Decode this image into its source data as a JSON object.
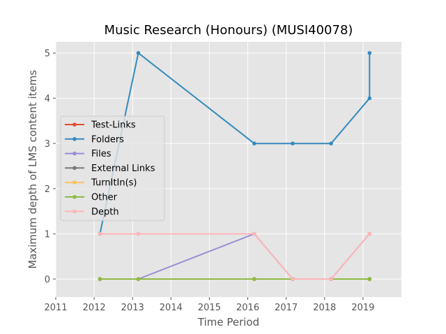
{
  "chart_data": {
    "type": "line",
    "title": "Music Research (Honours) (MUSI40078)",
    "xlabel": "Time Period",
    "ylabel": "Maximum depth of LMS content items",
    "xlim": [
      2011,
      2020
    ],
    "ylim": [
      -0.4,
      5.25
    ],
    "xticks": [
      "2011",
      "2012",
      "2013",
      "2014",
      "2015",
      "2016",
      "2017",
      "2018",
      "2019"
    ],
    "yticks": [
      "0",
      "1",
      "2",
      "3",
      "4",
      "5"
    ],
    "grid": true,
    "legend_position": "center-left",
    "series": [
      {
        "name": "Test-Links",
        "color": "#E24A33",
        "points": [
          [
            2012.15,
            0
          ],
          [
            2013.15,
            0
          ],
          [
            2016.17,
            0
          ],
          [
            2017.17,
            0
          ],
          [
            2018.17,
            0
          ],
          [
            2019.17,
            0
          ],
          [
            2019.17,
            0
          ]
        ]
      },
      {
        "name": "Folders",
        "color": "#348ABD",
        "points": [
          [
            2012.15,
            1
          ],
          [
            2013.15,
            5
          ],
          [
            2016.17,
            3
          ],
          [
            2017.17,
            3
          ],
          [
            2018.17,
            3
          ],
          [
            2019.17,
            4
          ],
          [
            2019.17,
            5
          ]
        ]
      },
      {
        "name": "Files",
        "color": "#988ED5",
        "points": [
          [
            2012.15,
            0
          ],
          [
            2013.15,
            0
          ],
          [
            2016.17,
            1
          ],
          [
            2017.17,
            0
          ],
          [
            2018.17,
            0
          ],
          [
            2019.17,
            1
          ],
          [
            2019.17,
            1
          ]
        ]
      },
      {
        "name": "External Links",
        "color": "#777777",
        "points": [
          [
            2012.15,
            0
          ],
          [
            2013.15,
            0
          ],
          [
            2016.17,
            0
          ],
          [
            2017.17,
            0
          ],
          [
            2018.17,
            0
          ],
          [
            2019.17,
            0
          ],
          [
            2019.17,
            0
          ]
        ]
      },
      {
        "name": "TurnItIn(s)",
        "color": "#FBC15E",
        "points": [
          [
            2012.15,
            0
          ],
          [
            2013.15,
            0
          ],
          [
            2016.17,
            0
          ],
          [
            2017.17,
            0
          ],
          [
            2018.17,
            0
          ],
          [
            2019.17,
            0
          ],
          [
            2019.17,
            0
          ]
        ]
      },
      {
        "name": "Other",
        "color": "#8EBA42",
        "points": [
          [
            2012.15,
            0
          ],
          [
            2013.15,
            0
          ],
          [
            2016.17,
            0
          ],
          [
            2017.17,
            0
          ],
          [
            2018.17,
            0
          ],
          [
            2019.17,
            0
          ],
          [
            2019.17,
            0
          ]
        ]
      },
      {
        "name": "Depth",
        "color": "#FFB5B8",
        "points": [
          [
            2012.15,
            1
          ],
          [
            2013.15,
            1
          ],
          [
            2016.17,
            1
          ],
          [
            2017.17,
            0
          ],
          [
            2018.17,
            0
          ],
          [
            2019.17,
            1
          ],
          [
            2019.17,
            1
          ]
        ]
      }
    ]
  }
}
